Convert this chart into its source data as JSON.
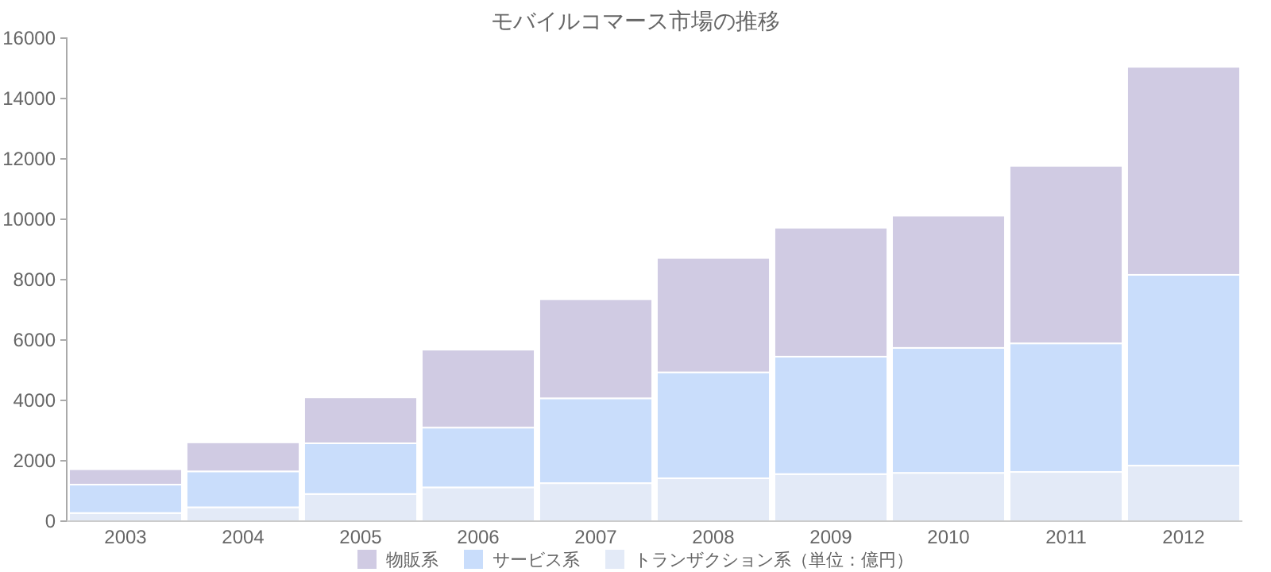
{
  "chart_data": {
    "type": "bar",
    "title": "モバイルコマース市場の推移",
    "stacked": true,
    "legend": "bottom",
    "grid": false,
    "categories": [
      "2003",
      "2004",
      "2005",
      "2006",
      "2007",
      "2008",
      "2009",
      "2010",
      "2011",
      "2012"
    ],
    "ylim": [
      0,
      16000
    ],
    "yticks": [
      0,
      2000,
      4000,
      6000,
      8000,
      10000,
      12000,
      14000,
      16000
    ],
    "series": [
      {
        "name": "トランザクション系（単位：億円）",
        "color": "#e3eaf7",
        "values": [
          270,
          460,
          900,
          1120,
          1260,
          1420,
          1560,
          1600,
          1630,
          1840
        ]
      },
      {
        "name": "サービス系",
        "color": "#c9ddfb",
        "values": [
          940,
          1190,
          1680,
          1980,
          2810,
          3510,
          3890,
          4140,
          4260,
          6320
        ]
      },
      {
        "name": "物販系",
        "color": "#d0cbe3",
        "values": [
          510,
          960,
          1520,
          2580,
          3280,
          3790,
          4270,
          4380,
          5880,
          6890
        ]
      }
    ]
  }
}
